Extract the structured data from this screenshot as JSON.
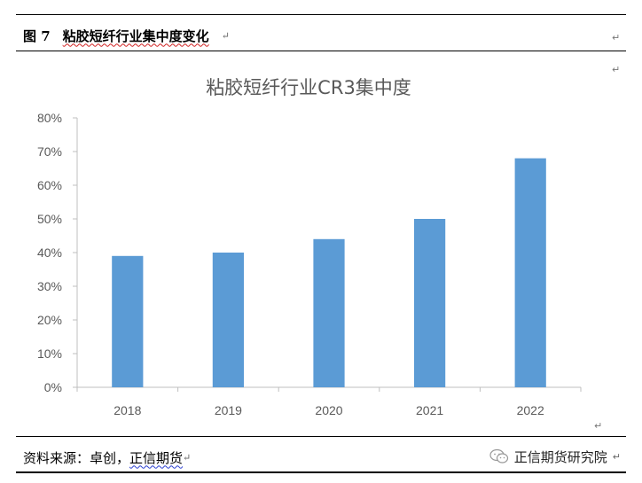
{
  "header": {
    "figure_number": "图 7",
    "figure_title": "粘胶短纤行业集中度变化"
  },
  "footer": {
    "source_prefix": "资料来源：卓创，",
    "source_name": "正信期货"
  },
  "brand": {
    "icon": "wechat-icon",
    "name": "正信期货研究院"
  },
  "colors": {
    "bar": "#5b9bd5",
    "axis": "#595959",
    "title": "#595959"
  },
  "chart_data": {
    "type": "bar",
    "title": "粘胶短纤行业CR3集中度",
    "categories": [
      "2018",
      "2019",
      "2020",
      "2021",
      "2022"
    ],
    "values": [
      0.39,
      0.4,
      0.44,
      0.5,
      0.68
    ],
    "ylim": [
      0,
      0.8
    ],
    "yticks": [
      "0%",
      "10%",
      "20%",
      "30%",
      "40%",
      "50%",
      "60%",
      "70%",
      "80%"
    ],
    "grid": false,
    "legend": "none"
  }
}
